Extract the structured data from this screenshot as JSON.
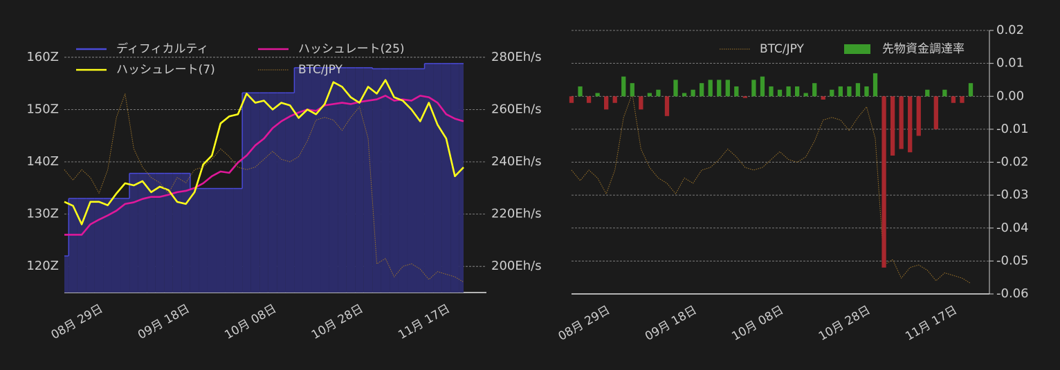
{
  "chart_data": [
    {
      "type": "line",
      "categories": [
        null,
        null,
        null,
        null,
        "08月 29日",
        null,
        null,
        null,
        null,
        null,
        null,
        null,
        null,
        null,
        "09月 18日",
        null,
        null,
        null,
        null,
        null,
        null,
        null,
        null,
        null,
        "10月 08日",
        null,
        null,
        null,
        null,
        null,
        null,
        null,
        null,
        null,
        "10月 28日",
        null,
        null,
        null,
        null,
        null,
        null,
        null,
        null,
        null,
        "11月 17日",
        null,
        null
      ],
      "series": [
        {
          "name": "ディフィカルティ",
          "type": "area",
          "color": "#4a4ad8",
          "fill": "#2c2c6a",
          "values": [
            122,
            133,
            133,
            133,
            133,
            133,
            133,
            133,
            137.8,
            137.8,
            137.8,
            137.8,
            137.8,
            137.8,
            137.8,
            134.9,
            134.9,
            134.9,
            134.9,
            134.9,
            134.9,
            153.2,
            153.2,
            153.2,
            153.2,
            153.2,
            153.2,
            158,
            158,
            158,
            158,
            158,
            158,
            158,
            158,
            158,
            157.8,
            157.8,
            157.8,
            157.8,
            157.8,
            157.8,
            158.8,
            158.8,
            158.8,
            158.8,
            158.8
          ]
        },
        {
          "name": "ハッシュレート(25)",
          "type": "line",
          "axis": "y2",
          "color": "#e0189a",
          "values": [
            212.1,
            212.1,
            212.1,
            216.1,
            217.9,
            219.5,
            221.3,
            223.9,
            224.5,
            225.8,
            226.6,
            226.6,
            227.4,
            228.4,
            228.9,
            230,
            231.8,
            234.5,
            236.3,
            235.8,
            239.7,
            242.4,
            246.3,
            248.9,
            252.9,
            255.5,
            257.4,
            258.9,
            260,
            259.5,
            261.6,
            262.1,
            262.6,
            262.1,
            262.9,
            263.4,
            263.9,
            265.3,
            263.4,
            263.9,
            263.4,
            265.3,
            264.7,
            262.6,
            258.2,
            256.5,
            255.5
          ]
        },
        {
          "name": "ハッシュレート(7)",
          "type": "line",
          "axis": "y2",
          "color": "#ffff1a",
          "values": [
            224.7,
            223.2,
            216.1,
            224.7,
            224.7,
            223.4,
            227.9,
            231.8,
            231,
            232.6,
            228.4,
            230.5,
            229.2,
            224.7,
            223.9,
            228.4,
            239,
            242.4,
            254.7,
            257.4,
            258.2,
            266.1,
            262.6,
            263.4,
            260,
            262.6,
            261.6,
            256.8,
            260,
            258.2,
            262.1,
            270.5,
            268.7,
            264.7,
            262.6,
            268.7,
            266.1,
            271.3,
            264.7,
            263.4,
            260,
            255.5,
            262.6,
            254.2,
            248.9,
            234.5,
            237.9
          ]
        },
        {
          "name": "BTC/JPY",
          "type": "line",
          "axis": "y3",
          "color": "#a0762a",
          "linestyle": "dotted",
          "values": [
            2.77,
            2.73,
            2.77,
            2.74,
            2.68,
            2.77,
            2.97,
            3.06,
            2.85,
            2.78,
            2.74,
            2.72,
            2.68,
            2.74,
            2.72,
            2.77,
            2.78,
            2.81,
            2.85,
            2.82,
            2.78,
            2.77,
            2.78,
            2.81,
            2.84,
            2.81,
            2.8,
            2.82,
            2.88,
            2.96,
            2.97,
            2.96,
            2.92,
            2.97,
            3.01,
            2.89,
            2.41,
            2.43,
            2.36,
            2.4,
            2.41,
            2.39,
            2.35,
            2.38,
            2.37,
            2.36,
            2.34
          ]
        }
      ],
      "ylim": [
        115,
        165
      ],
      "yticks": [
        {
          "value": 120,
          "label": "120Z"
        },
        {
          "value": 130,
          "label": "130Z"
        },
        {
          "value": 140,
          "label": "140Z"
        },
        {
          "value": 150,
          "label": "150Z"
        },
        {
          "value": 160,
          "label": "160Z"
        }
      ],
      "y2lim": [
        190,
        290
      ],
      "y2ticks": [
        {
          "value": 200,
          "label": "200Eh/s"
        },
        {
          "value": 220,
          "label": "220Eh/s"
        },
        {
          "value": 240,
          "label": "240Eh/s"
        },
        {
          "value": 260,
          "label": "260Eh/s"
        },
        {
          "value": 280,
          "label": "280Eh/s"
        }
      ],
      "y3lim": [
        2.3,
        3.3
      ],
      "grid": true,
      "legend": "upper left"
    },
    {
      "type": "bar",
      "categories": [
        null,
        null,
        null,
        null,
        "08月 29日",
        null,
        null,
        null,
        null,
        null,
        null,
        null,
        null,
        null,
        "09月 18日",
        null,
        null,
        null,
        null,
        null,
        null,
        null,
        null,
        null,
        "10月 08日",
        null,
        null,
        null,
        null,
        null,
        null,
        null,
        null,
        null,
        "10月 28日",
        null,
        null,
        null,
        null,
        null,
        null,
        null,
        null,
        null,
        "11月 17日",
        null,
        null
      ],
      "series": [
        {
          "name": "BTC/JPY",
          "type": "line",
          "axis": "y2",
          "color": "#a0762a",
          "linestyle": "dotted",
          "values": [
            2.77,
            2.73,
            2.77,
            2.74,
            2.68,
            2.77,
            2.97,
            3.06,
            2.85,
            2.78,
            2.74,
            2.72,
            2.68,
            2.74,
            2.72,
            2.77,
            2.78,
            2.81,
            2.85,
            2.82,
            2.78,
            2.77,
            2.78,
            2.81,
            2.84,
            2.81,
            2.8,
            2.82,
            2.88,
            2.96,
            2.97,
            2.96,
            2.92,
            2.97,
            3.01,
            2.89,
            2.41,
            2.43,
            2.36,
            2.4,
            2.41,
            2.39,
            2.35,
            2.38,
            2.37,
            2.36,
            2.34
          ]
        },
        {
          "name": "先物資金調達率",
          "type": "bar",
          "color": "#3a9a2a",
          "negative_color": "#a8282e",
          "values": [
            -0.002,
            0.003,
            -0.002,
            0.001,
            -0.004,
            -0.002,
            0.006,
            0.004,
            -0.004,
            0.001,
            0.002,
            -0.006,
            0.005,
            0.001,
            0.002,
            0.004,
            0.005,
            0.005,
            0.005,
            0.003,
            -0.0005,
            0.005,
            0.006,
            0.003,
            0.002,
            0.003,
            0.003,
            0.001,
            0.004,
            -0.001,
            0.002,
            0.003,
            0.003,
            0.004,
            0.003,
            0.007,
            -0.052,
            -0.018,
            -0.016,
            -0.017,
            -0.012,
            0.002,
            -0.01,
            0.002,
            -0.002,
            -0.002,
            0.004
          ]
        }
      ],
      "ylim": [
        -0.06,
        0.02
      ],
      "yticks": [
        -0.06,
        -0.05,
        -0.04,
        -0.03,
        -0.02,
        -0.01,
        {
          "value": 0,
          "label": "0.00"
        },
        0.01,
        0.02
      ],
      "yaxis_side": "right",
      "y2lim": [
        2.3,
        3.3
      ],
      "grid": true,
      "legend": "upper right"
    }
  ]
}
